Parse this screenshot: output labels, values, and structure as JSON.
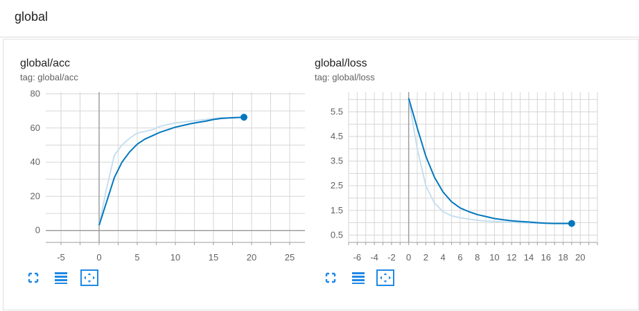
{
  "header": {
    "title": "global"
  },
  "colors": {
    "series": "#0277bd",
    "series_smoothed_shadow": "#c6dff0",
    "icon": "#1e88e5",
    "grid": "#d6d6d6",
    "axis": "#9e9e9e"
  },
  "icons": [
    "fullscreen-icon",
    "data-table-icon",
    "fit-domain-icon"
  ],
  "chart_data": [
    {
      "type": "line",
      "title": "global/acc",
      "subtitle": "tag: global/acc",
      "xlim": [
        -7,
        27
      ],
      "ylim": [
        -7,
        81
      ],
      "x_ticks": [
        -5,
        0,
        5,
        10,
        15,
        20,
        25
      ],
      "y_ticks": [
        0,
        20,
        40,
        60,
        80
      ],
      "grid": true,
      "series": [
        {
          "role": "raw",
          "x": [
            0,
            1,
            2,
            3,
            4,
            5,
            6,
            7,
            8,
            9,
            10,
            11,
            12,
            13,
            14,
            15,
            16,
            17,
            18,
            19
          ],
          "values": [
            3,
            25,
            44,
            50,
            54,
            57,
            58,
            59,
            61,
            62,
            63,
            63.5,
            64,
            64.5,
            65,
            65.5,
            66,
            66,
            66.2,
            66.3
          ]
        },
        {
          "role": "smoothed",
          "x": [
            0,
            1,
            2,
            3,
            4,
            5,
            6,
            7,
            8,
            9,
            10,
            11,
            12,
            13,
            14,
            15,
            16,
            17,
            18,
            19
          ],
          "values": [
            3,
            17,
            31,
            40,
            46,
            50.5,
            53.5,
            55.5,
            57.5,
            59,
            60.5,
            61.5,
            62.5,
            63.3,
            64,
            65,
            65.6,
            65.9,
            66.1,
            66.3
          ]
        }
      ]
    },
    {
      "type": "line",
      "title": "global/loss",
      "subtitle": "tag: global/loss",
      "xlim": [
        -7,
        22
      ],
      "ylim": [
        0.2,
        6.3
      ],
      "x_ticks": [
        -6,
        -4,
        -2,
        0,
        2,
        4,
        6,
        8,
        10,
        12,
        14,
        16,
        18,
        20
      ],
      "y_ticks": [
        0.5,
        1.5,
        2.5,
        3.5,
        4.5,
        5.5
      ],
      "grid": true,
      "series": [
        {
          "role": "raw",
          "x": [
            0,
            1,
            2,
            3,
            4,
            5,
            6,
            7,
            8,
            9,
            10,
            11,
            12,
            13,
            14,
            15,
            16,
            17,
            18,
            19
          ],
          "values": [
            6.05,
            4.0,
            2.5,
            1.8,
            1.45,
            1.28,
            1.2,
            1.15,
            1.1,
            1.07,
            1.05,
            1.03,
            1.02,
            1.0,
            0.99,
            0.98,
            0.97,
            0.97,
            0.97,
            0.97
          ]
        },
        {
          "role": "smoothed",
          "x": [
            0,
            1,
            2,
            3,
            4,
            5,
            6,
            7,
            8,
            9,
            10,
            11,
            12,
            13,
            14,
            15,
            16,
            17,
            18,
            19
          ],
          "values": [
            6.05,
            4.85,
            3.7,
            2.85,
            2.25,
            1.85,
            1.6,
            1.45,
            1.33,
            1.25,
            1.17,
            1.12,
            1.08,
            1.05,
            1.03,
            1.0,
            0.98,
            0.97,
            0.97,
            0.97
          ]
        }
      ]
    }
  ]
}
